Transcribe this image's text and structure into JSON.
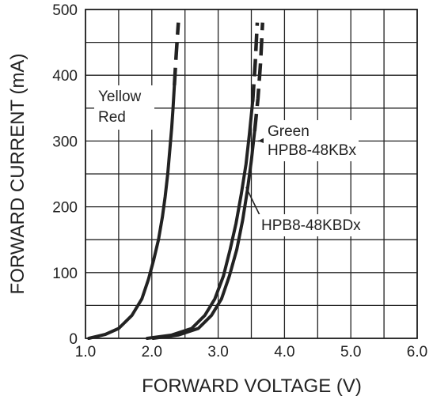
{
  "chart_data": {
    "type": "line",
    "xlabel": "FORWARD VOLTAGE (V)",
    "ylabel": "FORWARD CURRENT (mA)",
    "xlim": [
      1.0,
      6.0
    ],
    "ylim": [
      0,
      500
    ],
    "x_ticks": [
      "1.0",
      "2.0",
      "3.0",
      "4.0",
      "5.0",
      "6.0"
    ],
    "y_ticks": [
      "0",
      "100",
      "200",
      "300",
      "400",
      "500"
    ],
    "x_tick_values": [
      1.0,
      2.0,
      3.0,
      4.0,
      5.0,
      6.0
    ],
    "y_tick_values": [
      0,
      100,
      200,
      300,
      400,
      500
    ],
    "grid": true,
    "series": [
      {
        "name": "Yellow Red",
        "x": [
          1.05,
          1.3,
          1.5,
          1.7,
          1.85,
          1.95,
          2.03,
          2.1,
          2.16,
          2.2,
          2.24,
          2.27,
          2.3,
          2.32,
          2.34,
          2.36,
          2.38,
          2.4
        ],
        "y": [
          0,
          6,
          15,
          35,
          60,
          90,
          120,
          150,
          185,
          215,
          250,
          285,
          320,
          350,
          385,
          420,
          450,
          480
        ],
        "dashed_above": 390
      },
      {
        "name": "HPB8-48KBDx",
        "x": [
          1.93,
          2.3,
          2.6,
          2.8,
          2.95,
          3.08,
          3.18,
          3.27,
          3.35,
          3.42,
          3.47,
          3.52,
          3.56,
          3.59
        ],
        "y": [
          0,
          5,
          15,
          35,
          60,
          95,
          135,
          175,
          220,
          265,
          310,
          360,
          420,
          480
        ],
        "dashed_above": 360
      },
      {
        "name": "Green HPB8-48KBx",
        "x": [
          2.02,
          2.4,
          2.7,
          2.9,
          3.05,
          3.17,
          3.28,
          3.37,
          3.44,
          3.5,
          3.55,
          3.6,
          3.64,
          3.67
        ],
        "y": [
          0,
          5,
          15,
          35,
          60,
          95,
          135,
          180,
          225,
          270,
          315,
          365,
          420,
          480
        ],
        "dashed_above": 360
      }
    ],
    "annotations": [
      {
        "lines": [
          "Yellow",
          "Red"
        ],
        "target": "Yellow Red"
      },
      {
        "lines": [
          "Green",
          "HPB8-48KBx"
        ],
        "target": "Green HPB8-48KBx",
        "pointer": {
          "x": 3.6,
          "y": 300
        }
      },
      {
        "lines": [
          "HPB8-48KBDx"
        ],
        "target": "HPB8-48KBDx",
        "pointer": {
          "x": 3.42,
          "y": 230
        }
      }
    ],
    "colors": {
      "line": "#222222",
      "grid": "#222222",
      "background": "#ffffff"
    }
  }
}
